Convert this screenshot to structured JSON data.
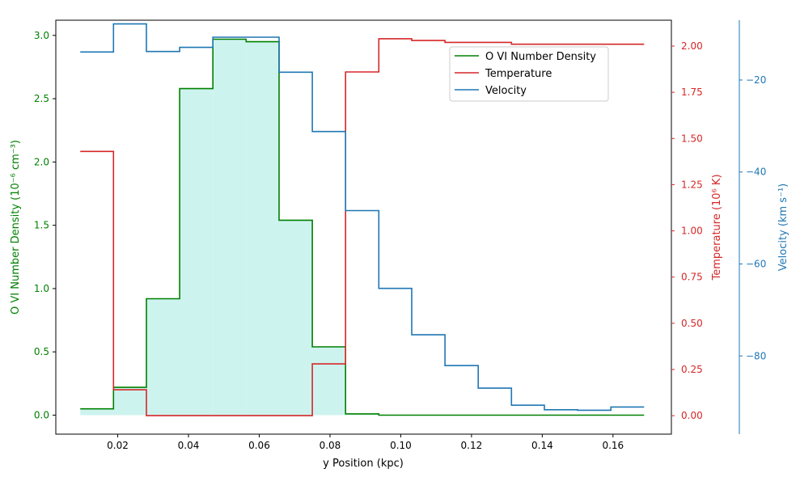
{
  "chart_data": {
    "type": "step",
    "title": "",
    "xlabel": "y Position (kpc)",
    "xlim": [
      0.0025,
      0.1765
    ],
    "x_ticks": [
      0.02,
      0.04,
      0.06,
      0.08,
      0.1,
      0.12,
      0.14,
      0.16
    ],
    "x_tick_labels": [
      "0.02",
      "0.04",
      "0.06",
      "0.08",
      "0.10",
      "0.12",
      "0.14",
      "0.16"
    ],
    "bin_edges": [
      0.0094,
      0.0188,
      0.0281,
      0.0375,
      0.0469,
      0.0563,
      0.0656,
      0.075,
      0.0844,
      0.0938,
      0.1031,
      0.1125,
      0.1219,
      0.1313,
      0.1406,
      0.15,
      0.1594,
      0.1688
    ],
    "axes": {
      "left": {
        "label": "O VI Number Density (10⁻⁶ cm⁻³)",
        "ylim": [
          -0.15,
          3.12
        ],
        "ticks": [
          0.0,
          0.5,
          1.0,
          1.5,
          2.0,
          2.5,
          3.0
        ],
        "tick_labels": [
          "0.0",
          "0.5",
          "1.0",
          "1.5",
          "2.0",
          "2.5",
          "3.0"
        ],
        "color": "#008000"
      },
      "right": {
        "label": "Temperature (10⁶ K)",
        "ylim": [
          -0.1,
          2.14
        ],
        "ticks": [
          0.0,
          0.25,
          0.5,
          0.75,
          1.0,
          1.25,
          1.5,
          1.75,
          2.0
        ],
        "tick_labels": [
          "0.00",
          "0.25",
          "0.50",
          "0.75",
          "1.00",
          "1.25",
          "1.50",
          "1.75",
          "2.00"
        ],
        "color": "#d62728"
      },
      "far_right": {
        "label": "Velocity (km s⁻¹)",
        "ylim": [
          -97,
          -7
        ],
        "ticks": [
          -20,
          -40,
          -60,
          -80
        ],
        "tick_labels": [
          "−20",
          "−40",
          "−60",
          "−80"
        ],
        "color": "#1f77b4"
      }
    },
    "series": [
      {
        "name": "O VI Number Density",
        "axis": "left",
        "color": "#008000",
        "fill": "#cdf3ef",
        "values": [
          0.05,
          0.22,
          0.92,
          2.58,
          2.97,
          2.95,
          1.54,
          0.54,
          0.01,
          0.0,
          0.0,
          0.0,
          0.0,
          0.0,
          0.0,
          0.0,
          0.0
        ]
      },
      {
        "name": "Temperature",
        "axis": "right",
        "color": "#d62728",
        "values": [
          1.43,
          0.14,
          0.0,
          0.0,
          0.0,
          0.0,
          0.0,
          0.28,
          1.86,
          2.04,
          2.03,
          2.02,
          2.02,
          2.01,
          2.01,
          2.01,
          2.01
        ]
      },
      {
        "name": "Velocity",
        "axis": "far_right",
        "color": "#1f77b4",
        "values": [
          -13.9,
          -7.8,
          -13.8,
          -12.9,
          -10.7,
          -10.7,
          -18.3,
          -31.2,
          -48.4,
          -65.3,
          -75.4,
          -82.1,
          -87.0,
          -90.7,
          -91.7,
          -91.8,
          -91.1
        ]
      }
    ],
    "legend": {
      "position": "top-right",
      "entries": [
        "O VI Number Density",
        "Temperature",
        "Velocity"
      ]
    }
  }
}
